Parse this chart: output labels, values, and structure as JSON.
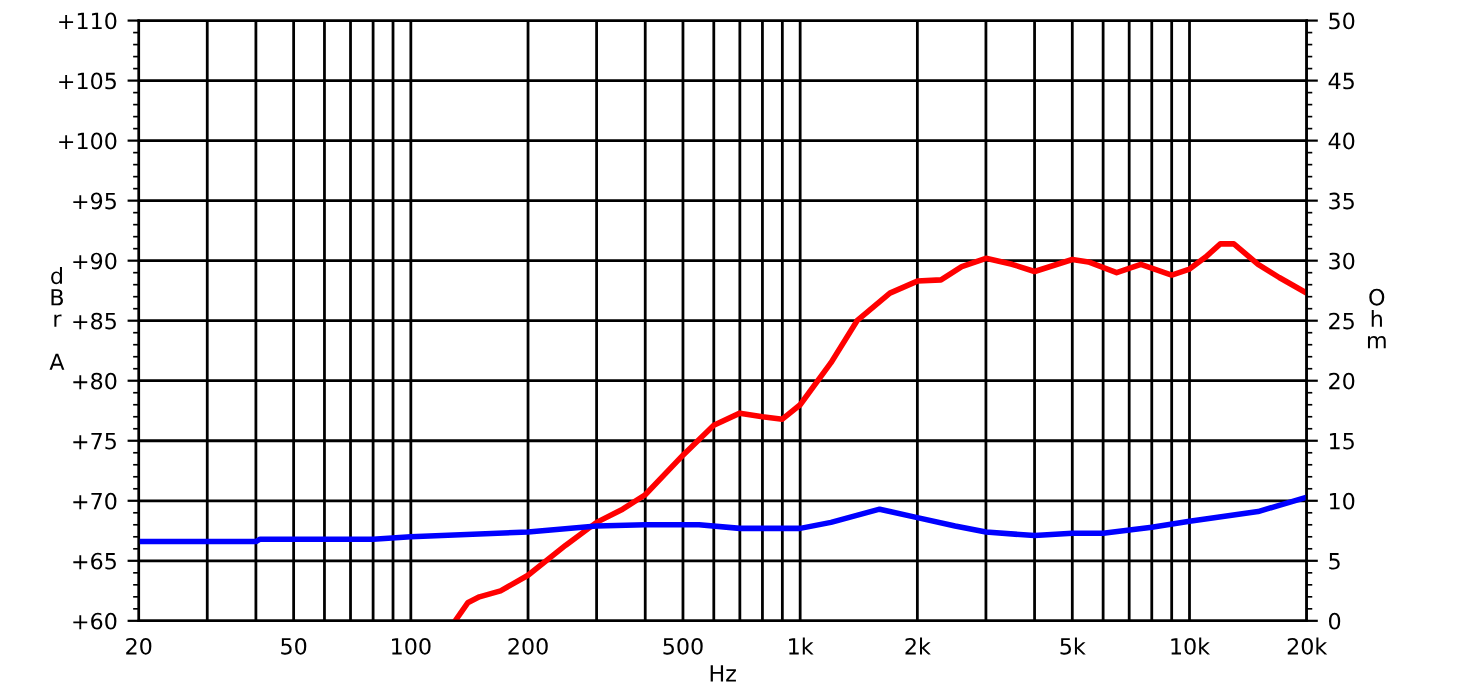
{
  "chart_data": {
    "type": "line",
    "xlabel": "Hz",
    "ylabel": "dBr A",
    "y2label": "Ohm",
    "log": "x",
    "grid": true,
    "legend": false,
    "marker": "none",
    "line_style": "solid",
    "xlim": [
      20,
      20000
    ],
    "xticks": [
      20,
      {
        "value": 30,
        "label": null
      },
      {
        "value": 40,
        "label": null
      },
      50,
      {
        "value": 60,
        "label": null
      },
      {
        "value": 70,
        "label": null
      },
      {
        "value": 80,
        "label": null
      },
      {
        "value": 90,
        "label": null
      },
      100,
      200,
      {
        "value": 300,
        "label": null
      },
      {
        "value": 400,
        "label": null
      },
      500,
      {
        "value": 600,
        "label": null
      },
      {
        "value": 700,
        "label": null
      },
      {
        "value": 800,
        "label": null
      },
      {
        "value": 900,
        "label": null
      },
      {
        "value": 1000,
        "label": "1k"
      },
      {
        "value": 2000,
        "label": "2k"
      },
      {
        "value": 3000,
        "label": null
      },
      {
        "value": 4000,
        "label": null
      },
      {
        "value": 5000,
        "label": "5k"
      },
      {
        "value": 6000,
        "label": null
      },
      {
        "value": 7000,
        "label": null
      },
      {
        "value": 8000,
        "label": null
      },
      {
        "value": 9000,
        "label": null
      },
      {
        "value": 10000,
        "label": "10k"
      },
      {
        "value": 20000,
        "label": "20k"
      }
    ],
    "ylim": [
      60,
      110
    ],
    "yticks": [
      {
        "value": 60,
        "label": "+60"
      },
      {
        "value": 65,
        "label": "+65"
      },
      {
        "value": 70,
        "label": "+70"
      },
      {
        "value": 75,
        "label": "+75"
      },
      {
        "value": 80,
        "label": "+80"
      },
      {
        "value": 85,
        "label": "+85"
      },
      {
        "value": 90,
        "label": "+90"
      },
      {
        "value": 95,
        "label": "+95"
      },
      {
        "value": 100,
        "label": "+100"
      },
      {
        "value": 105,
        "label": "+105"
      },
      {
        "value": 110,
        "label": "+110"
      }
    ],
    "y2lim": [
      0,
      50
    ],
    "y2ticks": [
      0,
      5,
      10,
      15,
      20,
      25,
      30,
      35,
      40,
      45,
      50
    ],
    "series": [
      {
        "color": "#ff0000",
        "axis": "y",
        "x": [
          130,
          140,
          150,
          170,
          200,
          250,
          300,
          350,
          400,
          500,
          600,
          700,
          800,
          900,
          1000,
          1200,
          1400,
          1700,
          2000,
          2300,
          2600,
          3000,
          3500,
          4000,
          5000,
          5500,
          6500,
          7500,
          9000,
          10000,
          11000,
          12000,
          13000,
          15000,
          17000,
          20000
        ],
        "values": [
          60,
          61.5,
          62,
          62.5,
          63.8,
          66.3,
          68.2,
          69.3,
          70.5,
          73.8,
          76.3,
          77.3,
          77,
          76.8,
          78,
          81.5,
          85,
          87.3,
          88.3,
          88.4,
          89.5,
          90.2,
          89.7,
          89.1,
          90.1,
          89.9,
          89,
          89.7,
          88.8,
          89.3,
          90.3,
          91.4,
          91.4,
          89.7,
          88.6,
          87.3
        ]
      },
      {
        "color": "#0000ff",
        "axis": "y2",
        "x": [
          20,
          40,
          41,
          80,
          100,
          200,
          300,
          400,
          550,
          700,
          1000,
          1200,
          1600,
          2000,
          2500,
          3000,
          4000,
          5000,
          6000,
          8000,
          10000,
          15000,
          20000
        ],
        "values": [
          6.6,
          6.6,
          6.8,
          6.8,
          7,
          7.4,
          7.9,
          8.0,
          8.0,
          7.7,
          7.7,
          8.2,
          9.3,
          8.6,
          7.9,
          7.4,
          7.1,
          7.3,
          7.3,
          7.8,
          8.3,
          9.1,
          10.3
        ]
      }
    ]
  }
}
